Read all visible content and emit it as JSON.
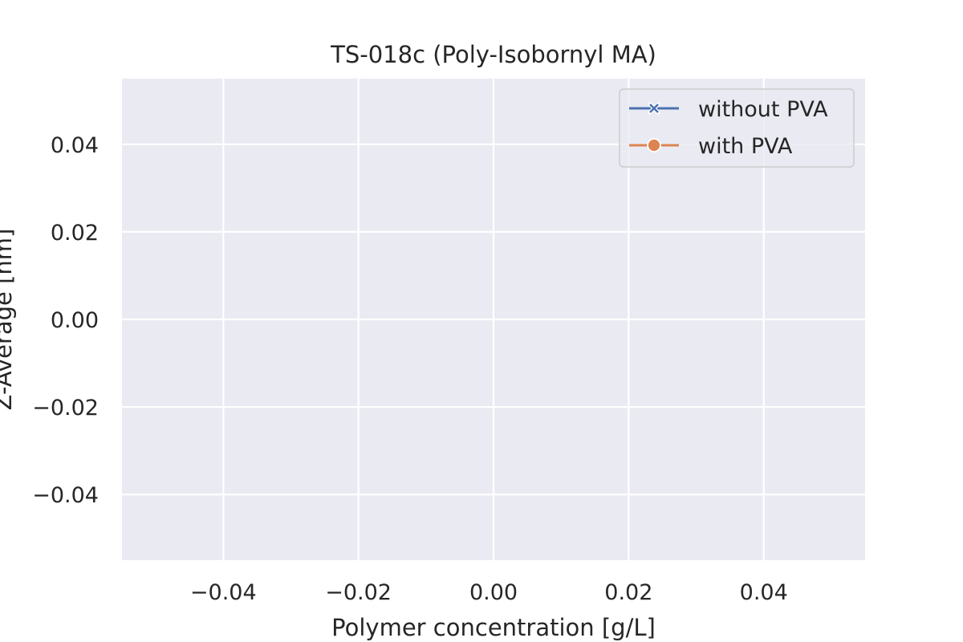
{
  "chart_data": {
    "type": "line",
    "title": "TS-018c (Poly-Isobornyl MA)",
    "xlabel": "Polymer concentration [g/L]",
    "ylabel": "Z-Average [nm]",
    "xlim": [
      -0.055,
      0.055
    ],
    "ylim": [
      -0.055,
      0.055
    ],
    "x_ticks": [
      -0.04,
      -0.02,
      0.0,
      0.02,
      0.04
    ],
    "y_ticks": [
      -0.04,
      -0.02,
      0.0,
      0.02,
      0.04
    ],
    "x_tick_labels": [
      "−0.04",
      "−0.02",
      "0.00",
      "0.02",
      "0.04"
    ],
    "y_tick_labels": [
      "−0.04",
      "−0.02",
      "0.00",
      "0.02",
      "0.04"
    ],
    "grid": true,
    "legend_position": "top-right",
    "series": [
      {
        "name": "without PVA",
        "color": "#4c72b0",
        "marker": "x",
        "x": [],
        "y": []
      },
      {
        "name": "with PVA",
        "color": "#dd8452",
        "marker": "o",
        "x": [],
        "y": []
      }
    ]
  }
}
